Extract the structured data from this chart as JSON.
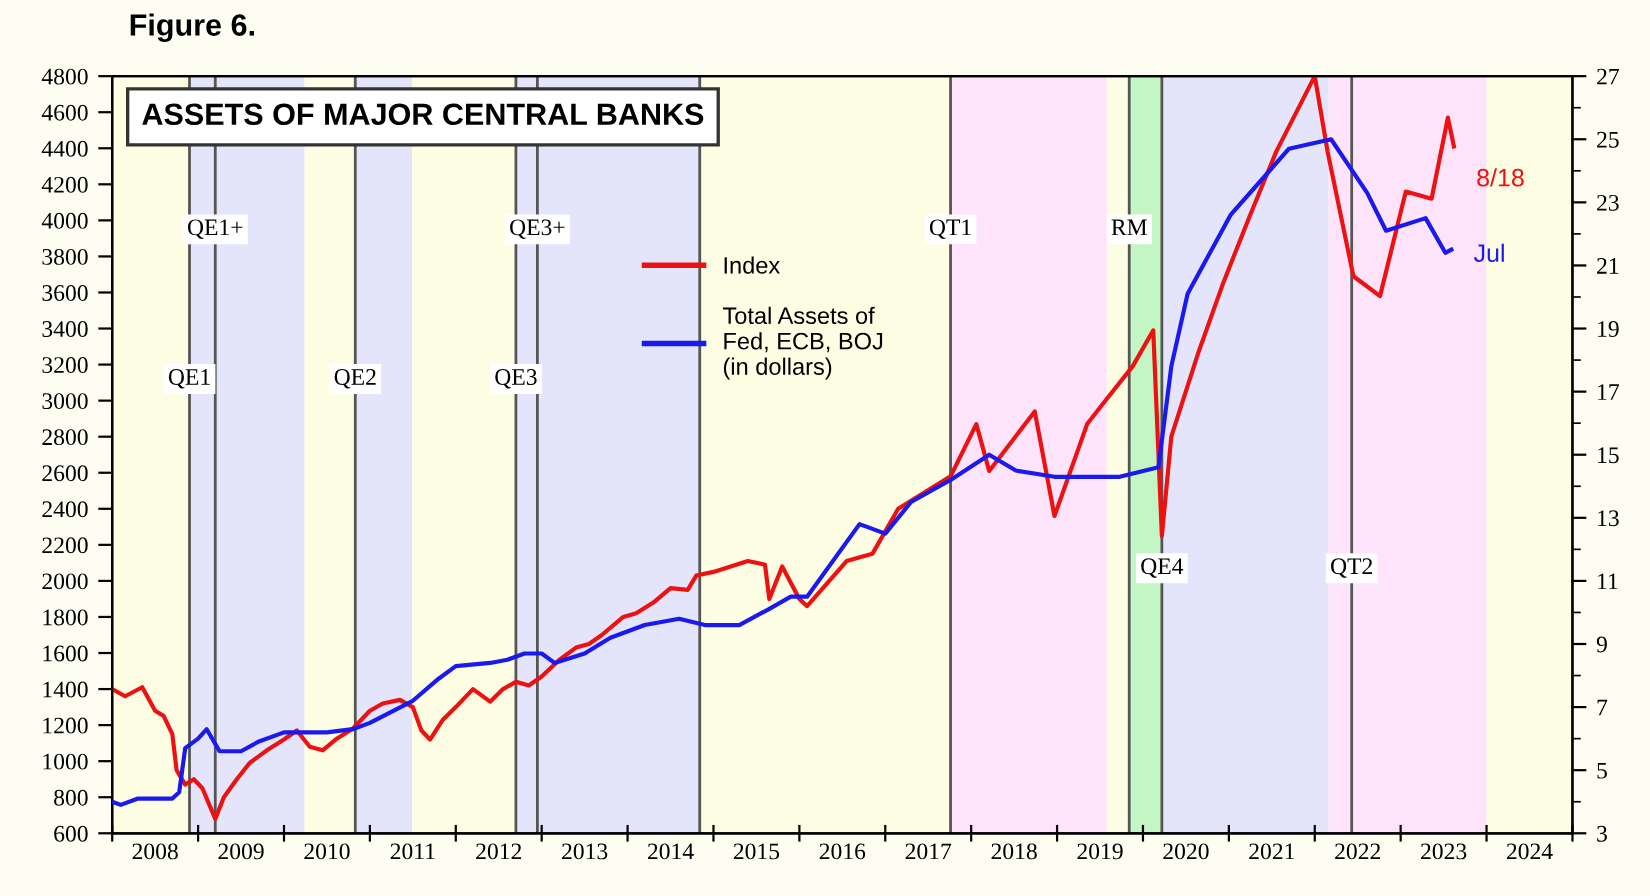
{
  "chart_data": {
    "type": "line",
    "title": "Figure 6.",
    "subtitle": "ASSETS OF MAJOR CENTRAL BANKS",
    "xlim": [
      2008,
      2025
    ],
    "ylim": [
      600,
      4800
    ],
    "y2lim": [
      3,
      27
    ],
    "xticks": [
      {
        "value": 2008,
        "label": null
      },
      {
        "value": 2009,
        "label": null
      },
      {
        "value": 2010,
        "label": null
      },
      {
        "value": 2011,
        "label": null
      },
      {
        "value": 2012,
        "label": null
      },
      {
        "value": 2013,
        "label": null
      },
      {
        "value": 2014,
        "label": null
      },
      {
        "value": 2015,
        "label": null
      },
      {
        "value": 2016,
        "label": null
      },
      {
        "value": 2017,
        "label": null
      },
      {
        "value": 2018,
        "label": null
      },
      {
        "value": 2019,
        "label": null
      },
      {
        "value": 2020,
        "label": null
      },
      {
        "value": 2021,
        "label": null
      },
      {
        "value": 2022,
        "label": null
      },
      {
        "value": 2023,
        "label": null
      },
      {
        "value": 2024,
        "label": null
      },
      {
        "value": 2025,
        "label": null
      },
      {
        "value": 2008.5,
        "label": "2008"
      },
      {
        "value": 2009.5,
        "label": "2009"
      },
      {
        "value": 2010.5,
        "label": "2010"
      },
      {
        "value": 2011.5,
        "label": "2011"
      },
      {
        "value": 2012.5,
        "label": "2012"
      },
      {
        "value": 2013.5,
        "label": "2013"
      },
      {
        "value": 2014.5,
        "label": "2014"
      },
      {
        "value": 2015.5,
        "label": "2015"
      },
      {
        "value": 2016.5,
        "label": "2016"
      },
      {
        "value": 2017.5,
        "label": "2017"
      },
      {
        "value": 2018.5,
        "label": "2018"
      },
      {
        "value": 2019.5,
        "label": "2019"
      },
      {
        "value": 2020.5,
        "label": "2020"
      },
      {
        "value": 2021.5,
        "label": "2021"
      },
      {
        "value": 2022.5,
        "label": "2022"
      },
      {
        "value": 2023.5,
        "label": "2023"
      },
      {
        "value": 2024.5,
        "label": "2024"
      }
    ],
    "yticks": [
      600,
      800,
      1000,
      1200,
      1400,
      1600,
      1800,
      2000,
      2200,
      2400,
      2600,
      2800,
      3000,
      3200,
      3400,
      3600,
      3800,
      4000,
      4200,
      4400,
      4600,
      4800
    ],
    "y2ticks": [
      {
        "value": 3,
        "label": "3"
      },
      {
        "value": 5,
        "label": "5"
      },
      {
        "value": 7,
        "label": "7"
      },
      {
        "value": 9,
        "label": "9"
      },
      {
        "value": 11,
        "label": "11"
      },
      {
        "value": 13,
        "label": "13"
      },
      {
        "value": 15,
        "label": "15"
      },
      {
        "value": 17,
        "label": "17"
      },
      {
        "value": 19,
        "label": "19"
      },
      {
        "value": 21,
        "label": "21"
      },
      {
        "value": 23,
        "label": "23"
      },
      {
        "value": 25,
        "label": "25"
      },
      {
        "value": 27,
        "label": "27"
      },
      {
        "value": 4,
        "label": null
      },
      {
        "value": 6,
        "label": null
      },
      {
        "value": 8,
        "label": null
      },
      {
        "value": 10,
        "label": null
      },
      {
        "value": 12,
        "label": null
      },
      {
        "value": 14,
        "label": null
      },
      {
        "value": 16,
        "label": null
      },
      {
        "value": 18,
        "label": null
      },
      {
        "value": 20,
        "label": null
      },
      {
        "value": 22,
        "label": null
      },
      {
        "value": 24,
        "label": null
      },
      {
        "value": 26,
        "label": null
      }
    ],
    "grid": false,
    "legend": "top",
    "marker": "none",
    "line_style": "solid",
    "series": [
      {
        "name": "Index",
        "color": "#ee1111",
        "x": [
          2008.0,
          2008.15,
          2008.35,
          2008.5,
          2008.6,
          2008.7,
          2008.75,
          2008.85,
          2008.95,
          2009.05,
          2009.2,
          2009.3,
          2009.45,
          2009.6,
          2009.8,
          2010.0,
          2010.15,
          2010.3,
          2010.45,
          2010.6,
          2010.8,
          2011.0,
          2011.15,
          2011.35,
          2011.5,
          2011.6,
          2011.7,
          2011.85,
          2012.0,
          2012.2,
          2012.4,
          2012.55,
          2012.7,
          2012.85,
          2013.0,
          2013.2,
          2013.4,
          2013.55,
          2013.7,
          2013.95,
          2014.1,
          2014.3,
          2014.5,
          2014.7,
          2014.8,
          2015.0,
          2015.2,
          2015.4,
          2015.6,
          2015.65,
          2015.8,
          2016.0,
          2016.09,
          2016.55,
          2016.85,
          2017.15,
          2017.76,
          2018.06,
          2018.21,
          2018.74,
          2018.97,
          2019.35,
          2019.58,
          2019.88,
          2020.12,
          2020.22,
          2020.33,
          2020.64,
          2020.94,
          2021.24,
          2021.55,
          2021.85,
          2022.0,
          2022.15,
          2022.45,
          2022.76,
          2023.06,
          2023.36,
          2023.55,
          2023.62
        ],
        "values": [
          1400,
          1360,
          1410,
          1280,
          1250,
          1150,
          950,
          870,
          900,
          850,
          680,
          800,
          900,
          990,
          1060,
          1120,
          1170,
          1080,
          1060,
          1120,
          1180,
          1280,
          1320,
          1340,
          1300,
          1170,
          1120,
          1230,
          1300,
          1400,
          1330,
          1400,
          1440,
          1420,
          1470,
          1560,
          1630,
          1650,
          1700,
          1800,
          1820,
          1880,
          1960,
          1950,
          2030,
          2050,
          2080,
          2110,
          2090,
          1900,
          2080,
          1900,
          1860,
          2110,
          2150,
          2400,
          2580,
          2870,
          2610,
          2940,
          2360,
          2870,
          3010,
          3190,
          3390,
          2250,
          2800,
          3260,
          3660,
          4020,
          4380,
          4660,
          4800,
          4380,
          3690,
          3580,
          4160,
          4120,
          4570,
          4410
        ]
      },
      {
        "name": "Total Assets of\nFed, ECB, BOJ\n(in dollars)",
        "color": "#1a1aee",
        "axis": "y2",
        "x": [
          2008.0,
          2008.1,
          2008.3,
          2008.5,
          2008.7,
          2008.78,
          2008.85,
          2009.0,
          2009.1,
          2009.25,
          2009.5,
          2009.7,
          2010.0,
          2010.5,
          2010.8,
          2011.0,
          2011.5,
          2011.8,
          2012.0,
          2012.4,
          2012.6,
          2012.8,
          2013.0,
          2013.15,
          2013.5,
          2013.8,
          2014.2,
          2014.6,
          2014.9,
          2015.3,
          2015.64,
          2015.9,
          2016.09,
          2016.7,
          2017.0,
          2017.3,
          2017.76,
          2018.21,
          2018.52,
          2018.97,
          2019.73,
          2020.18,
          2020.33,
          2020.52,
          2021.02,
          2021.7,
          2022.19,
          2022.61,
          2022.83,
          2023.29,
          2023.52,
          2023.59
        ],
        "values": [
          4.0,
          3.9,
          4.1,
          4.1,
          4.1,
          4.3,
          5.7,
          6.0,
          6.3,
          5.6,
          5.6,
          5.9,
          6.2,
          6.2,
          6.3,
          6.5,
          7.2,
          7.9,
          8.3,
          8.4,
          8.5,
          8.7,
          8.7,
          8.4,
          8.7,
          9.2,
          9.6,
          9.8,
          9.6,
          9.6,
          10.1,
          10.5,
          10.5,
          12.8,
          12.5,
          13.5,
          14.2,
          15.0,
          14.5,
          14.3,
          14.3,
          14.6,
          17.8,
          20.1,
          22.6,
          24.7,
          25.0,
          23.3,
          22.1,
          22.5,
          21.4,
          21.5
        ]
      }
    ],
    "bands": [
      {
        "axis": "x",
        "from": 2008.0,
        "to": 2008.9,
        "color": "#fdfde4"
      },
      {
        "axis": "x",
        "from": 2008.9,
        "to": 2010.24,
        "color": "#e4e4fa"
      },
      {
        "axis": "x",
        "from": 2010.24,
        "to": 2010.83,
        "color": "#fdfde4"
      },
      {
        "axis": "x",
        "from": 2010.83,
        "to": 2011.49,
        "color": "#e4e4fa"
      },
      {
        "axis": "x",
        "from": 2011.49,
        "to": 2012.7,
        "color": "#fdfde4"
      },
      {
        "axis": "x",
        "from": 2012.7,
        "to": 2014.84,
        "color": "#e4e4fa"
      },
      {
        "axis": "x",
        "from": 2014.84,
        "to": 2017.76,
        "color": "#fdfde4"
      },
      {
        "axis": "x",
        "from": 2017.76,
        "to": 2019.58,
        "color": "#fde4fa"
      },
      {
        "axis": "x",
        "from": 2019.58,
        "to": 2019.84,
        "color": "#fdfde4"
      },
      {
        "axis": "x",
        "from": 2019.84,
        "to": 2020.22,
        "color": "#c4f5c4"
      },
      {
        "axis": "x",
        "from": 2020.22,
        "to": 2022.16,
        "color": "#e4e4fa"
      },
      {
        "axis": "x",
        "from": 2022.16,
        "to": 2024.0,
        "color": "#fde4fa"
      },
      {
        "axis": "x",
        "from": 2024.0,
        "to": 2025.0,
        "color": "#fdfde4"
      }
    ],
    "ref_lines": [
      {
        "axis": "x",
        "value": 2008.9,
        "color": "#555555"
      },
      {
        "axis": "x",
        "value": 2009.2,
        "color": "#555555"
      },
      {
        "axis": "x",
        "value": 2010.83,
        "color": "#555555"
      },
      {
        "axis": "x",
        "value": 2012.7,
        "color": "#555555"
      },
      {
        "axis": "x",
        "value": 2012.95,
        "color": "#555555"
      },
      {
        "axis": "x",
        "value": 2014.84,
        "color": "#555555"
      },
      {
        "axis": "x",
        "value": 2017.76,
        "color": "#555555"
      },
      {
        "axis": "x",
        "value": 2019.84,
        "color": "#555555"
      },
      {
        "axis": "x",
        "value": 2020.22,
        "color": "#555555"
      },
      {
        "axis": "x",
        "value": 2022.43,
        "color": "#555555"
      }
    ],
    "annotations": [
      {
        "text": "QE1",
        "x": 2008.9,
        "y": 3120
      },
      {
        "text": "QE1+",
        "x": 2009.2,
        "y": 3950
      },
      {
        "text": "QE2",
        "x": 2010.83,
        "y": 3120
      },
      {
        "text": "QE3",
        "x": 2012.7,
        "y": 3120
      },
      {
        "text": "QE3+",
        "x": 2012.95,
        "y": 3950
      },
      {
        "text": "QT1",
        "x": 2017.76,
        "y": 3950
      },
      {
        "text": "RM",
        "x": 2019.84,
        "y": 3950
      },
      {
        "text": "QE4",
        "x": 2020.22,
        "y": 2070
      },
      {
        "text": "QT2",
        "x": 2022.43,
        "y": 2070
      },
      {
        "text": "8/18",
        "x": 2023.62,
        "y": 4410
      },
      {
        "text": "Jul",
        "x": 2023.59,
        "y": 3837
      }
    ]
  }
}
